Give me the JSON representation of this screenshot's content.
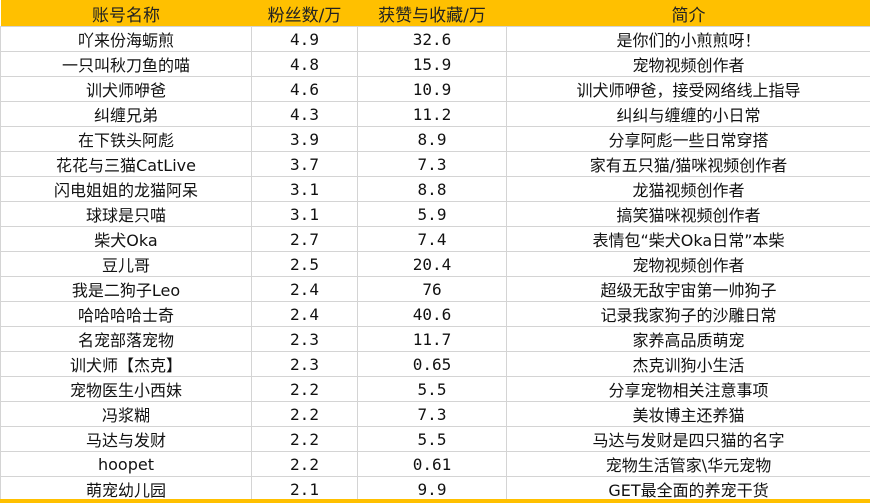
{
  "header": {
    "account_name": "账号名称",
    "followers": "粉丝数/万",
    "likes_favorites": "获赞与收藏/万",
    "bio": "简介"
  },
  "colors": {
    "header_bg": "#FFC000",
    "grid": "#d4d4d4"
  },
  "rows": [
    {
      "name": "吖来份海蛎煎",
      "followers": "4.9",
      "likes": "32.6",
      "bio": "是你们的小煎煎呀！"
    },
    {
      "name": "一只叫秋刀鱼的喵",
      "followers": "4.8",
      "likes": "15.9",
      "bio": "宠物视频创作者"
    },
    {
      "name": "训犬师咿爸",
      "followers": "4.6",
      "likes": "10.9",
      "bio": "训犬师咿爸，接受网络线上指导"
    },
    {
      "name": "纠缠兄弟",
      "followers": "4.3",
      "likes": "11.2",
      "bio": "纠纠与缠缠的小日常"
    },
    {
      "name": "在下铁头阿彪",
      "followers": "3.9",
      "likes": "8.9",
      "bio": "分享阿彪一些日常穿搭"
    },
    {
      "name": "花花与三猫CatLive",
      "followers": "3.7",
      "likes": "7.3",
      "bio": "家有五只猫/猫咪视频创作者"
    },
    {
      "name": "闪电姐姐的龙猫阿呆",
      "followers": "3.1",
      "likes": "8.8",
      "bio": "龙猫视频创作者"
    },
    {
      "name": "球球是只喵",
      "followers": "3.1",
      "likes": "5.9",
      "bio": "搞笑猫咪视频创作者"
    },
    {
      "name": "柴犬Oka",
      "followers": "2.7",
      "likes": "7.4",
      "bio": "表情包“柴犬Oka日常”本柴"
    },
    {
      "name": "豆儿哥",
      "followers": "2.5",
      "likes": "20.4",
      "bio": "宠物视频创作者"
    },
    {
      "name": "我是二狗子Leo",
      "followers": "2.4",
      "likes": "76",
      "bio": "超级无敌宇宙第一帅狗子"
    },
    {
      "name": "哈哈哈哈士奇",
      "followers": "2.4",
      "likes": "40.6",
      "bio": "记录我家狗子的沙雕日常"
    },
    {
      "name": "名宠部落宠物",
      "followers": "2.3",
      "likes": "11.7",
      "bio": "家养高品质萌宠"
    },
    {
      "name": "训犬师【杰克】",
      "followers": "2.3",
      "likes": "0.65",
      "bio": "杰克训狗小生活"
    },
    {
      "name": "宠物医生小西妹",
      "followers": "2.2",
      "likes": "5.5",
      "bio": "分享宠物相关注意事项"
    },
    {
      "name": "冯浆糊",
      "followers": "2.2",
      "likes": "7.3",
      "bio": "美妆博主还养猫"
    },
    {
      "name": "马达与发财",
      "followers": "2.2",
      "likes": "5.5",
      "bio": "马达与发财是四只猫的名字"
    },
    {
      "name": "hoopet",
      "followers": "2.2",
      "likes": "0.61",
      "bio": "宠物生活管家\\华元宠物"
    },
    {
      "name": "萌宠幼儿园",
      "followers": "2.1",
      "likes": "9.9",
      "bio": "GET最全面的养宠干货"
    }
  ]
}
